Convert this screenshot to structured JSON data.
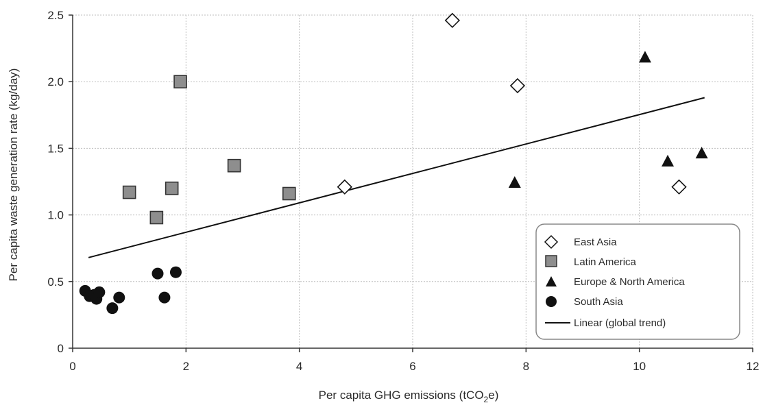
{
  "chart_data": {
    "type": "scatter",
    "xlabel": {
      "prefix": "Per capita GHG emissions (tCO",
      "subscript": "2",
      "suffix": "e)"
    },
    "ylabel": "Per capita waste generation rate (kg/day)",
    "xlim": [
      0,
      12
    ],
    "ylim": [
      0,
      2.5
    ],
    "xticks": [
      0,
      2,
      4,
      6,
      8,
      10,
      12
    ],
    "yticks": [
      0,
      0.5,
      1.0,
      1.5,
      2.0,
      2.5
    ],
    "xtick_labels": [
      "0",
      "2",
      "4",
      "6",
      "8",
      "10",
      "12"
    ],
    "ytick_labels": [
      "0",
      "0.5",
      "1.0",
      "1.5",
      "2.0",
      "2.5"
    ],
    "grid": true,
    "legend_position": "bottom-right",
    "series": [
      {
        "name": "East Asia",
        "marker": "diamond-open",
        "points": [
          {
            "x": 4.8,
            "y": 1.21
          },
          {
            "x": 6.7,
            "y": 2.46
          },
          {
            "x": 7.85,
            "y": 1.97
          },
          {
            "x": 10.7,
            "y": 1.21
          }
        ]
      },
      {
        "name": "Latin America",
        "marker": "square-gray",
        "points": [
          {
            "x": 1.0,
            "y": 1.17
          },
          {
            "x": 1.48,
            "y": 0.98
          },
          {
            "x": 1.75,
            "y": 1.2
          },
          {
            "x": 1.9,
            "y": 2.0
          },
          {
            "x": 2.85,
            "y": 1.37
          },
          {
            "x": 3.82,
            "y": 1.16
          }
        ]
      },
      {
        "name": "Europe & North America",
        "marker": "triangle-filled",
        "points": [
          {
            "x": 7.8,
            "y": 1.24
          },
          {
            "x": 10.1,
            "y": 2.18
          },
          {
            "x": 10.5,
            "y": 1.4
          },
          {
            "x": 11.1,
            "y": 1.46
          }
        ]
      },
      {
        "name": "South Asia",
        "marker": "circle-filled",
        "points": [
          {
            "x": 0.22,
            "y": 0.43
          },
          {
            "x": 0.3,
            "y": 0.39
          },
          {
            "x": 0.38,
            "y": 0.4
          },
          {
            "x": 0.42,
            "y": 0.37
          },
          {
            "x": 0.47,
            "y": 0.42
          },
          {
            "x": 0.7,
            "y": 0.3
          },
          {
            "x": 0.82,
            "y": 0.38
          },
          {
            "x": 1.5,
            "y": 0.56
          },
          {
            "x": 1.62,
            "y": 0.38
          },
          {
            "x": 1.82,
            "y": 0.57
          }
        ]
      }
    ],
    "trendline": {
      "name": "Linear (global trend)",
      "x": [
        0.28,
        11.15
      ],
      "y": [
        0.68,
        1.88
      ]
    }
  },
  "colors": {
    "text": "#2a2a2a",
    "axis": "#333333",
    "grid": "#bdbdbd",
    "marker_fill_gray": "#8e8e8e",
    "marker_dark": "#111111",
    "legend_border": "#888888"
  }
}
